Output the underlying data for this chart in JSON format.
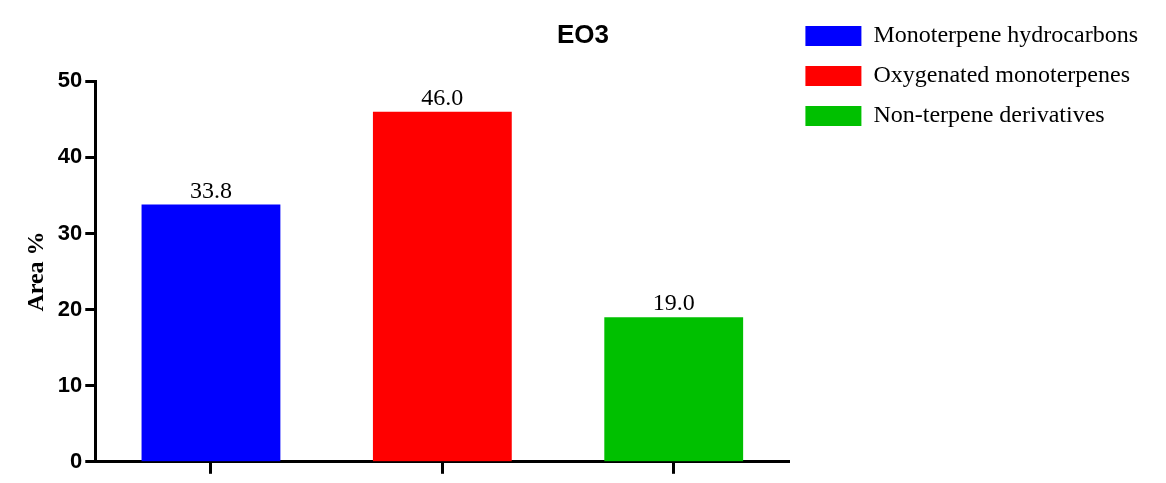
{
  "chart_data": {
    "type": "bar",
    "title": "EO3",
    "ylabel": "Area %",
    "categories": [
      null,
      null,
      null
    ],
    "series": [
      {
        "name": "Monoterpene hydrocarbons",
        "color": "#0000ff",
        "values": [
          33.8,
          null,
          null
        ],
        "value_labels": [
          "33.8",
          null,
          null
        ]
      },
      {
        "name": "Oxygenated monoterpenes",
        "color": "#ff0000",
        "values": [
          null,
          46.0,
          null
        ],
        "value_labels": [
          null,
          "46.0",
          null
        ]
      },
      {
        "name": "Non-terpene derivatives",
        "color": "#00c000",
        "values": [
          null,
          null,
          19.0
        ],
        "value_labels": [
          null,
          null,
          "19.0"
        ]
      }
    ],
    "ylim": [
      0,
      50
    ],
    "yticks": [
      0,
      10,
      20,
      30,
      40,
      50
    ],
    "legend": "right",
    "grid": false,
    "tick_labels": "y"
  }
}
